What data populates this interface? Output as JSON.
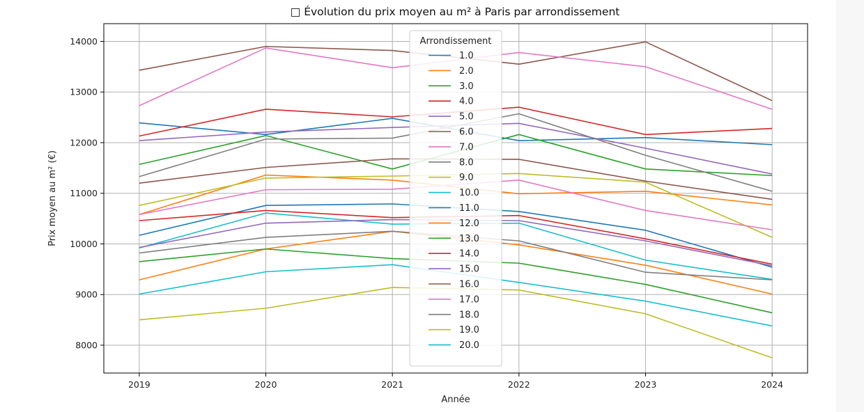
{
  "chart_data": {
    "type": "line",
    "title": "□ Évolution du prix moyen au m² à Paris par arrondissement",
    "xlabel": "Année",
    "ylabel": "Prix moyen au m² (€)",
    "x": [
      2019,
      2020,
      2021,
      2022,
      2023,
      2024
    ],
    "ylim": [
      7450,
      14350
    ],
    "xlim": [
      2018.72,
      2024.28
    ],
    "yticks": [
      8000,
      9000,
      10000,
      11000,
      12000,
      13000,
      14000
    ],
    "grid": true,
    "legend_title": "Arrondissement",
    "legend_position": "top-center",
    "series": [
      {
        "name": "1.0",
        "color": "#1f77b4",
        "values": [
          12390,
          12160,
          12480,
          12040,
          12100,
          11960
        ]
      },
      {
        "name": "2.0",
        "color": "#ff7f0e",
        "values": [
          10580,
          11360,
          11260,
          10990,
          11040,
          10770
        ]
      },
      {
        "name": "3.0",
        "color": "#2ca02c",
        "values": [
          11570,
          12140,
          11480,
          12160,
          11480,
          11350
        ]
      },
      {
        "name": "4.0",
        "color": "#d62728",
        "values": [
          12130,
          12660,
          12510,
          12700,
          12160,
          12280
        ]
      },
      {
        "name": "5.0",
        "color": "#9467bd",
        "values": [
          12040,
          12210,
          12300,
          12380,
          11890,
          11380
        ]
      },
      {
        "name": "6.0",
        "color": "#8c564b",
        "values": [
          13430,
          13900,
          13820,
          13550,
          13990,
          12830
        ]
      },
      {
        "name": "7.0",
        "color": "#e377c2",
        "values": [
          12730,
          13870,
          13480,
          13780,
          13500,
          12660
        ]
      },
      {
        "name": "8.0",
        "color": "#7f7f7f",
        "values": [
          11330,
          12070,
          12090,
          12570,
          11750,
          11040
        ]
      },
      {
        "name": "9.0",
        "color": "#bcbd22",
        "values": [
          10760,
          11300,
          11340,
          11390,
          11220,
          10130
        ]
      },
      {
        "name": "10.0",
        "color": "#17becf",
        "values": [
          9920,
          10610,
          10390,
          10410,
          9680,
          9300
        ]
      },
      {
        "name": "11.0",
        "color": "#1f77b4",
        "values": [
          10170,
          10760,
          10790,
          10640,
          10270,
          9540
        ]
      },
      {
        "name": "12.0",
        "color": "#ff7f0e",
        "values": [
          9290,
          9900,
          10250,
          9980,
          9580,
          9010
        ]
      },
      {
        "name": "13.0",
        "color": "#2ca02c",
        "values": [
          9650,
          9900,
          9710,
          9620,
          9200,
          8640
        ]
      },
      {
        "name": "14.0",
        "color": "#d62728",
        "values": [
          10460,
          10660,
          10520,
          10560,
          10100,
          9600
        ]
      },
      {
        "name": "15.0",
        "color": "#9467bd",
        "values": [
          9930,
          10410,
          10480,
          10460,
          10060,
          9570
        ]
      },
      {
        "name": "16.0",
        "color": "#8c564b",
        "values": [
          11200,
          11510,
          11680,
          11670,
          11240,
          10880
        ]
      },
      {
        "name": "17.0",
        "color": "#e377c2",
        "values": [
          10580,
          11070,
          11080,
          11260,
          10660,
          10280
        ]
      },
      {
        "name": "18.0",
        "color": "#7f7f7f",
        "values": [
          9820,
          10130,
          10250,
          10060,
          9440,
          9290
        ]
      },
      {
        "name": "19.0",
        "color": "#bcbd22",
        "values": [
          8500,
          8730,
          9140,
          9090,
          8620,
          7750
        ]
      },
      {
        "name": "20.0",
        "color": "#17becf",
        "values": [
          9010,
          9450,
          9590,
          9240,
          8870,
          8380
        ]
      }
    ]
  }
}
